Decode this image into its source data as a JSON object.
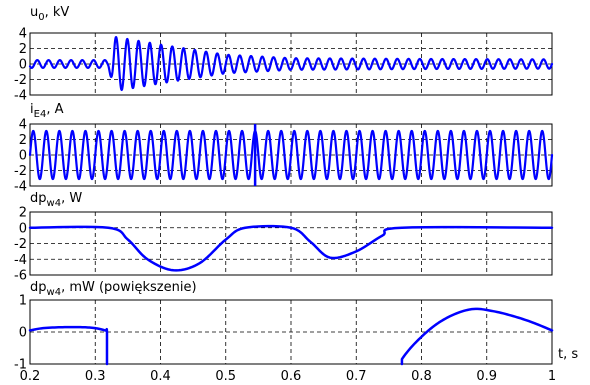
{
  "chart_data": [
    {
      "type": "line",
      "title": "u0, kV",
      "title_parts": {
        "main": "u",
        "sub": "0",
        "tail": ", kV"
      },
      "xlim": [
        0.2,
        1.0
      ],
      "ylim": [
        -4,
        4
      ],
      "yticks": [
        4,
        2,
        0,
        -2,
        -4
      ],
      "ytick_labels": [
        "4",
        "2",
        "0",
        "-2",
        "-4"
      ],
      "grid": true,
      "series_color": "#0000ff",
      "series": [
        {
          "description": "oscillating voltage, amplitude ~0.5 kV before t≈0.32 s, transient burst to ~3.5 kV at t≈0.32 s decaying to ~0.7 kV by t≈0.6 s",
          "x": [
            0.2,
            0.32,
            0.33,
            0.4,
            0.5,
            0.6,
            0.8,
            1.0
          ],
          "envelope": [
            0.5,
            0.5,
            3.5,
            2.5,
            1.2,
            0.75,
            0.65,
            0.6
          ]
        }
      ]
    },
    {
      "type": "line",
      "title": "iE4, A",
      "title_parts": {
        "main": "i",
        "sub": "E4",
        "tail": ", A"
      },
      "xlim": [
        0.2,
        1.0
      ],
      "ylim": [
        -4,
        4
      ],
      "yticks": [
        4,
        2,
        0,
        -2,
        -4
      ],
      "ytick_labels": [
        "4",
        "2",
        "0",
        "-2",
        "-4"
      ],
      "grid": true,
      "series_color": "#0000ff",
      "series": [
        {
          "description": "sinusoidal current, amplitude ~3 A, with a spike at t≈0.545 s",
          "x": [
            0.2,
            0.545,
            1.0
          ],
          "amplitude": 3.1,
          "spike_x": 0.545,
          "spike_range": [
            -4,
            4
          ]
        }
      ]
    },
    {
      "type": "line",
      "title": "dpw4, W",
      "title_parts": {
        "main": "dp",
        "sub": "w4",
        "tail": ", W"
      },
      "xlim": [
        0.2,
        1.0
      ],
      "ylim": [
        -6,
        2
      ],
      "yticks": [
        2,
        0,
        -2,
        -4,
        -6
      ],
      "ytick_labels": [
        "2",
        "0",
        "-2",
        "-4",
        "-6"
      ],
      "grid": true,
      "series_color": "#0000ff",
      "series": [
        {
          "x": [
            0.2,
            0.32,
            0.35,
            0.38,
            0.42,
            0.46,
            0.5,
            0.53,
            0.6,
            0.63,
            0.66,
            0.7,
            0.74,
            0.77,
            1.0
          ],
          "y": [
            0,
            0,
            -1.5,
            -4,
            -5.4,
            -4.5,
            -1.5,
            0,
            0,
            -1.8,
            -3.8,
            -3,
            -1,
            0,
            0
          ]
        }
      ]
    },
    {
      "type": "line",
      "title": "dpw4, mW (powiększenie)",
      "title_parts": {
        "main": "dp",
        "sub": "w4",
        "tail": ", mW (powiększenie)"
      },
      "xlim": [
        0.2,
        1.0
      ],
      "ylim": [
        -1,
        1
      ],
      "yticks": [
        1,
        0,
        -1
      ],
      "ytick_labels": [
        "1",
        "0",
        "-1"
      ],
      "xticks": [
        0.2,
        0.3,
        0.4,
        0.5,
        0.6,
        0.7,
        0.8,
        0.9,
        1.0
      ],
      "xtick_labels": [
        "0.2",
        "0.3",
        "0.4",
        "0.5",
        "0.6",
        "0.7",
        "0.8",
        "0.9",
        "1"
      ],
      "xlabel": "t, s",
      "grid": true,
      "series_color": "#0000ff",
      "series": [
        {
          "x": [
            0.2,
            0.22,
            0.25,
            0.28,
            0.3,
            0.315,
            0.318,
            0.318
          ],
          "y": [
            0.05,
            0.12,
            0.15,
            0.15,
            0.12,
            0.05,
            0,
            -1
          ]
        },
        {
          "x": [
            0.77,
            0.77,
            0.79,
            0.82,
            0.85,
            0.88,
            0.91,
            0.94,
            0.97,
            1.0
          ],
          "y": [
            -1,
            -0.85,
            -0.35,
            0.2,
            0.55,
            0.72,
            0.65,
            0.5,
            0.3,
            0.05
          ]
        }
      ]
    }
  ]
}
